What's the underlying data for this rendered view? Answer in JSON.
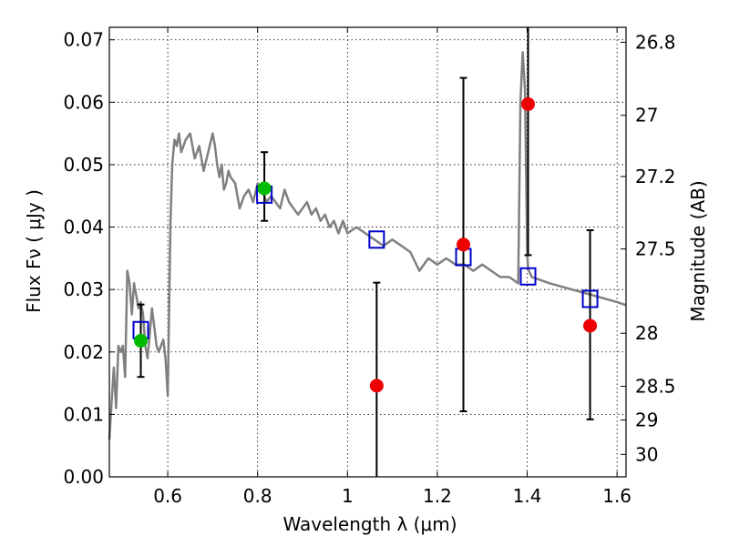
{
  "chart_data": {
    "type": "scatter",
    "xlabel": "Wavelength  λ (μm)",
    "ylabel": "Flux  Fν  ( μJy )",
    "y2label": "Magnitude (AB)",
    "xlim": [
      0.47,
      1.62
    ],
    "ylim": [
      0.0,
      0.072
    ],
    "grid": true,
    "xticks": [
      0.6,
      0.8,
      1.0,
      1.2,
      1.4,
      1.6
    ],
    "xtick_labels": [
      "0.6",
      "0.8",
      "1",
      "1.2",
      "1.4",
      "1.6"
    ],
    "yticks": [
      0.0,
      0.01,
      0.02,
      0.03,
      0.04,
      0.05,
      0.06,
      0.07
    ],
    "ytick_labels": [
      "0.00",
      "0.01",
      "0.02",
      "0.03",
      "0.04",
      "0.05",
      "0.06",
      "0.07"
    ],
    "right_ticks": [
      {
        "label": "26.8",
        "flux": 0.0696
      },
      {
        "label": "27",
        "flux": 0.0579
      },
      {
        "label": "27.2",
        "flux": 0.0481
      },
      {
        "label": "27.5",
        "flux": 0.0365
      },
      {
        "label": "28",
        "flux": 0.023
      },
      {
        "label": "28.5",
        "flux": 0.0145
      },
      {
        "label": "29",
        "flux": 0.0091
      },
      {
        "label": "30",
        "flux": 0.0036
      }
    ],
    "colors": {
      "model": "#808080",
      "model_points": "#0000cc",
      "obs_hst": "#00bb00",
      "obs_ir": "#ee0000",
      "errorbar": "#000000",
      "grid": "#000000"
    },
    "series": [
      {
        "name": "model_spectrum",
        "type": "line",
        "x": [
          0.47,
          0.475,
          0.48,
          0.485,
          0.49,
          0.495,
          0.5,
          0.505,
          0.51,
          0.515,
          0.52,
          0.525,
          0.53,
          0.535,
          0.54,
          0.545,
          0.55,
          0.555,
          0.56,
          0.565,
          0.57,
          0.575,
          0.58,
          0.585,
          0.59,
          0.595,
          0.6,
          0.603,
          0.606,
          0.61,
          0.615,
          0.62,
          0.625,
          0.63,
          0.64,
          0.65,
          0.66,
          0.67,
          0.68,
          0.69,
          0.7,
          0.705,
          0.71,
          0.715,
          0.72,
          0.725,
          0.73,
          0.735,
          0.74,
          0.75,
          0.76,
          0.77,
          0.78,
          0.79,
          0.8,
          0.81,
          0.82,
          0.83,
          0.84,
          0.85,
          0.86,
          0.87,
          0.88,
          0.89,
          0.9,
          0.91,
          0.92,
          0.93,
          0.94,
          0.95,
          0.96,
          0.97,
          0.98,
          0.99,
          1.0,
          1.02,
          1.04,
          1.06,
          1.08,
          1.1,
          1.12,
          1.14,
          1.16,
          1.18,
          1.2,
          1.22,
          1.24,
          1.26,
          1.28,
          1.3,
          1.32,
          1.34,
          1.36,
          1.38,
          1.385,
          1.39,
          1.395,
          1.4,
          1.402,
          1.404,
          1.41,
          1.45,
          1.5,
          1.55,
          1.6,
          1.62
        ],
        "y": [
          0.006,
          0.012,
          0.0175,
          0.011,
          0.021,
          0.02,
          0.021,
          0.016,
          0.033,
          0.031,
          0.026,
          0.031,
          0.029,
          0.027,
          0.028,
          0.026,
          0.021,
          0.019,
          0.023,
          0.027,
          0.024,
          0.021,
          0.02,
          0.021,
          0.022,
          0.019,
          0.013,
          0.027,
          0.041,
          0.05,
          0.054,
          0.053,
          0.055,
          0.052,
          0.054,
          0.055,
          0.051,
          0.053,
          0.049,
          0.052,
          0.055,
          0.053,
          0.05,
          0.048,
          0.05,
          0.046,
          0.047,
          0.049,
          0.048,
          0.047,
          0.043,
          0.045,
          0.046,
          0.044,
          0.047,
          0.046,
          0.044,
          0.045,
          0.044,
          0.043,
          0.046,
          0.044,
          0.043,
          0.042,
          0.043,
          0.044,
          0.042,
          0.043,
          0.041,
          0.042,
          0.04,
          0.041,
          0.039,
          0.041,
          0.039,
          0.04,
          0.039,
          0.038,
          0.037,
          0.038,
          0.037,
          0.036,
          0.033,
          0.035,
          0.034,
          0.035,
          0.034,
          0.034,
          0.033,
          0.034,
          0.033,
          0.032,
          0.032,
          0.031,
          0.06,
          0.068,
          0.062,
          0.036,
          0.0335,
          0.033,
          0.032,
          0.031,
          0.03,
          0.029,
          0.028,
          0.0275
        ]
      },
      {
        "name": "model_photometry",
        "type": "scatter",
        "marker": "open-square",
        "x": [
          0.54,
          0.815,
          1.065,
          1.258,
          1.402,
          1.54
        ],
        "y": [
          0.0235,
          0.0452,
          0.038,
          0.0352,
          0.0321,
          0.0285
        ]
      },
      {
        "name": "observed_optical",
        "type": "scatter",
        "marker": "filled-circle",
        "x": [
          0.54,
          0.815
        ],
        "y": [
          0.0218,
          0.0462
        ],
        "yerr_low": [
          0.0058,
          0.0052
        ],
        "yerr_high": [
          0.0058,
          0.0058
        ]
      },
      {
        "name": "observed_nir",
        "type": "scatter",
        "marker": "filled-circle",
        "x": [
          1.065,
          1.258,
          1.402,
          1.54
        ],
        "y": [
          0.0146,
          0.0372,
          0.0597,
          0.0242
        ],
        "yerr_low": [
          0.0146,
          0.0267,
          0.0242,
          0.015
        ],
        "yerr_high": [
          0.0165,
          0.0267,
          0.0123,
          0.0153
        ]
      }
    ]
  }
}
